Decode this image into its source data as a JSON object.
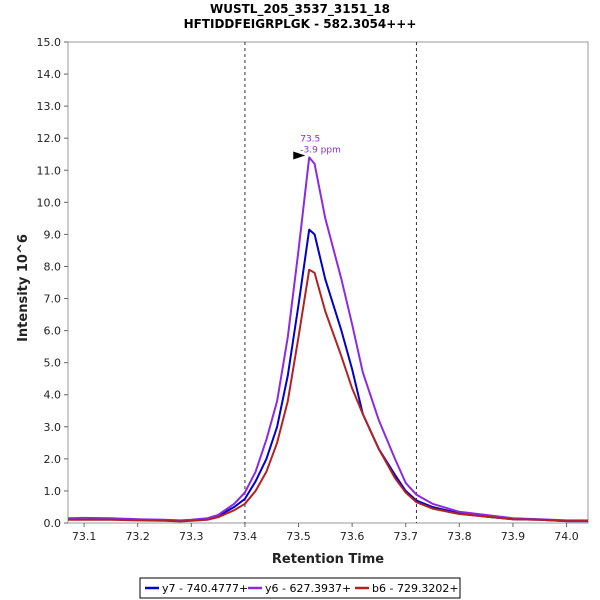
{
  "chart_data": {
    "type": "line",
    "title": "WUSTL_205_3537_3151_18",
    "subtitle": "HFTIDDFEIGRPLGK - 582.3054+++",
    "xlabel": "Retention Time",
    "ylabel": "Intensity 10^6",
    "xlim": [
      73.07,
      74.04
    ],
    "ylim": [
      0,
      15
    ],
    "xticks": [
      "73.1",
      "73.2",
      "73.3",
      "73.4",
      "73.5",
      "73.6",
      "73.7",
      "73.8",
      "73.9",
      "74.0"
    ],
    "yticks": [
      "0.0",
      "1.0",
      "2.0",
      "3.0",
      "4.0",
      "5.0",
      "6.0",
      "7.0",
      "8.0",
      "9.0",
      "10.0",
      "11.0",
      "12.0",
      "13.0",
      "14.0",
      "15.0"
    ],
    "boundaries": [
      73.4,
      73.72
    ],
    "annotation": {
      "label": "73.5",
      "sublabel": "-3.9 ppm",
      "x": 73.52,
      "y": 11.4,
      "color": "#8a2be2"
    },
    "legend_position": "bottom",
    "series": [
      {
        "name": "y7 - 740.4777+",
        "color": "#0000cc",
        "points": [
          [
            73.07,
            0.12
          ],
          [
            73.1,
            0.12
          ],
          [
            73.15,
            0.13
          ],
          [
            73.2,
            0.11
          ],
          [
            73.25,
            0.08
          ],
          [
            73.28,
            0.06
          ],
          [
            73.3,
            0.08
          ],
          [
            73.33,
            0.12
          ],
          [
            73.35,
            0.22
          ],
          [
            73.38,
            0.5
          ],
          [
            73.4,
            0.75
          ],
          [
            73.42,
            1.3
          ],
          [
            73.44,
            2.0
          ],
          [
            73.46,
            3.0
          ],
          [
            73.48,
            4.6
          ],
          [
            73.5,
            6.8
          ],
          [
            73.52,
            9.15
          ],
          [
            73.53,
            9.0
          ],
          [
            73.55,
            7.6
          ],
          [
            73.58,
            6.0
          ],
          [
            73.6,
            4.8
          ],
          [
            73.62,
            3.4
          ],
          [
            73.65,
            2.3
          ],
          [
            73.68,
            1.5
          ],
          [
            73.7,
            1.0
          ],
          [
            73.72,
            0.7
          ],
          [
            73.75,
            0.5
          ],
          [
            73.8,
            0.3
          ],
          [
            73.85,
            0.2
          ],
          [
            73.9,
            0.12
          ],
          [
            73.95,
            0.1
          ],
          [
            74.0,
            0.06
          ],
          [
            74.04,
            0.06
          ]
        ]
      },
      {
        "name": "y6 - 627.3937+",
        "color": "#8a2be2",
        "points": [
          [
            73.07,
            0.15
          ],
          [
            73.1,
            0.16
          ],
          [
            73.15,
            0.15
          ],
          [
            73.2,
            0.12
          ],
          [
            73.25,
            0.1
          ],
          [
            73.28,
            0.08
          ],
          [
            73.3,
            0.1
          ],
          [
            73.33,
            0.15
          ],
          [
            73.35,
            0.25
          ],
          [
            73.38,
            0.6
          ],
          [
            73.4,
            0.95
          ],
          [
            73.42,
            1.6
          ],
          [
            73.44,
            2.6
          ],
          [
            73.46,
            3.8
          ],
          [
            73.48,
            5.8
          ],
          [
            73.5,
            8.5
          ],
          [
            73.52,
            11.4
          ],
          [
            73.53,
            11.2
          ],
          [
            73.55,
            9.5
          ],
          [
            73.58,
            7.6
          ],
          [
            73.6,
            6.2
          ],
          [
            73.62,
            4.7
          ],
          [
            73.65,
            3.2
          ],
          [
            73.68,
            2.0
          ],
          [
            73.7,
            1.25
          ],
          [
            73.72,
            0.88
          ],
          [
            73.75,
            0.6
          ],
          [
            73.8,
            0.35
          ],
          [
            73.85,
            0.25
          ],
          [
            73.9,
            0.15
          ],
          [
            73.95,
            0.12
          ],
          [
            74.0,
            0.08
          ],
          [
            74.04,
            0.08
          ]
        ]
      },
      {
        "name": "b6 - 729.3202+",
        "color": "#b22222",
        "points": [
          [
            73.07,
            0.1
          ],
          [
            73.1,
            0.1
          ],
          [
            73.15,
            0.1
          ],
          [
            73.2,
            0.08
          ],
          [
            73.25,
            0.07
          ],
          [
            73.28,
            0.05
          ],
          [
            73.3,
            0.07
          ],
          [
            73.33,
            0.1
          ],
          [
            73.35,
            0.18
          ],
          [
            73.38,
            0.4
          ],
          [
            73.4,
            0.6
          ],
          [
            73.42,
            1.0
          ],
          [
            73.44,
            1.6
          ],
          [
            73.46,
            2.5
          ],
          [
            73.48,
            3.8
          ],
          [
            73.5,
            5.8
          ],
          [
            73.52,
            7.9
          ],
          [
            73.53,
            7.8
          ],
          [
            73.55,
            6.6
          ],
          [
            73.58,
            5.2
          ],
          [
            73.6,
            4.2
          ],
          [
            73.62,
            3.4
          ],
          [
            73.65,
            2.3
          ],
          [
            73.68,
            1.4
          ],
          [
            73.7,
            0.95
          ],
          [
            73.72,
            0.65
          ],
          [
            73.75,
            0.45
          ],
          [
            73.8,
            0.28
          ],
          [
            73.85,
            0.2
          ],
          [
            73.9,
            0.12
          ],
          [
            73.95,
            0.1
          ],
          [
            74.0,
            0.06
          ],
          [
            74.04,
            0.06
          ]
        ]
      }
    ]
  }
}
